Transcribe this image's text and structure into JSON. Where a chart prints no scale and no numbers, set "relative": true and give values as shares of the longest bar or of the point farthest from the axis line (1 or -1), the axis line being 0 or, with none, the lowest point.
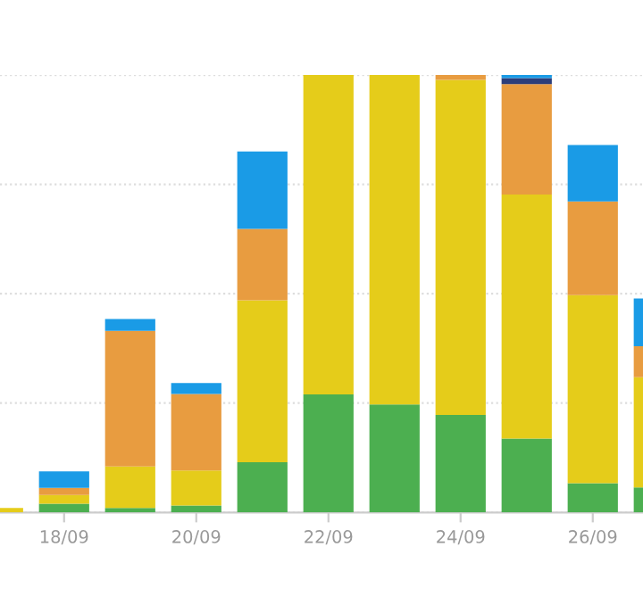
{
  "chart_data": {
    "type": "bar",
    "stacked": true,
    "relative": true,
    "grid": "y",
    "categories": [
      null,
      "18/09",
      null,
      "20/09",
      null,
      "22/09",
      null,
      "24/09",
      null,
      "26/09",
      null
    ],
    "series": [
      {
        "color": "#4caf50",
        "values": [
          null,
          0.02,
          0.01,
          0.016,
          0.115,
          0.27,
          0.247,
          0.223,
          0.169,
          0.067,
          0.057
        ]
      },
      {
        "color": "#e5cc1a",
        "values": [
          0.01,
          0.02,
          0.095,
          0.08,
          0.37,
          0.73,
          0.753,
          0.766,
          0.558,
          0.43,
          0.252
        ]
      },
      {
        "color": "#e89c40",
        "values": [
          null,
          0.016,
          0.31,
          0.175,
          0.163,
          null,
          null,
          0.011,
          0.252,
          0.214,
          0.071
        ]
      },
      {
        "color": "#2c3e7a",
        "values": [
          null,
          null,
          null,
          null,
          null,
          null,
          null,
          null,
          0.014,
          null,
          null
        ]
      },
      {
        "color": "#1a9be6",
        "values": [
          null,
          0.038,
          0.027,
          0.025,
          0.177,
          null,
          null,
          null,
          0.007,
          0.129,
          0.109
        ]
      }
    ]
  }
}
